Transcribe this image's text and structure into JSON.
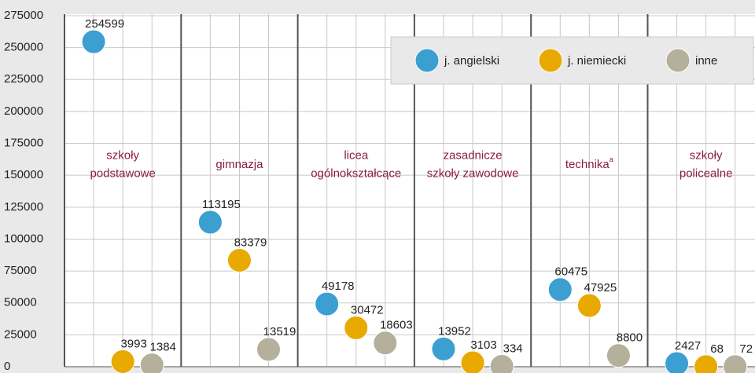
{
  "chart_data": {
    "type": "scatter",
    "categories": [
      [
        "szkoły",
        "podstawowe"
      ],
      [
        "gimnazja"
      ],
      [
        "licea",
        "ogólnokształcące"
      ],
      [
        "zasadnicze",
        "szkoły zawodowe"
      ],
      [
        "technika"
      ],
      [
        "szkoły",
        "policealne"
      ]
    ],
    "category_marks": [
      null,
      null,
      null,
      null,
      "a",
      null
    ],
    "series": [
      {
        "name": "j. angielski",
        "color": "#3b9fd1",
        "values": [
          254599,
          113195,
          49178,
          13952,
          60475,
          2427
        ]
      },
      {
        "name": "j. niemiecki",
        "color": "#e8a900",
        "values": [
          3993,
          83379,
          30472,
          3103,
          47925,
          68
        ]
      },
      {
        "name": "inne",
        "color": "#b5b09c",
        "values": [
          1384,
          13519,
          18603,
          334,
          8800,
          72
        ]
      }
    ],
    "ylim": [
      0,
      275000
    ],
    "yticks": [
      0,
      25000,
      50000,
      75000,
      100000,
      125000,
      150000,
      175000,
      200000,
      225000,
      250000,
      275000
    ],
    "grid": true,
    "legend": "top-right"
  }
}
